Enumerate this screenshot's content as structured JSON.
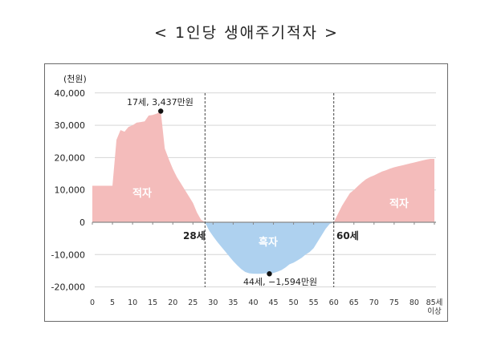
{
  "title": "< 1인당 생애주기적자 >",
  "chart_data": {
    "type": "area",
    "title": "1인당 생애주기적자",
    "xlabel": "",
    "ylabel": "(천원)",
    "ylim": [
      -20000,
      40000
    ],
    "xlim": [
      0,
      85
    ],
    "yticks": [
      40000,
      30000,
      20000,
      10000,
      0,
      -10000,
      -20000
    ],
    "ytick_labels": [
      "40,000",
      "30,000",
      "20,000",
      "10,000",
      "0",
      "-10,000",
      "-20,000"
    ],
    "xticks": [
      0,
      5,
      10,
      15,
      20,
      25,
      30,
      35,
      40,
      45,
      50,
      55,
      60,
      65,
      70,
      75,
      80,
      85
    ],
    "xtick_labels": [
      "0",
      "5",
      "10",
      "15",
      "20",
      "25",
      "30",
      "35",
      "40",
      "45",
      "50",
      "55",
      "60",
      "65",
      "70",
      "75",
      "80",
      "85세 이상"
    ],
    "grid": true,
    "legend": "none",
    "series": [
      {
        "name": "생애주기적자",
        "x": [
          0,
          1,
          2,
          3,
          4,
          5,
          6,
          7,
          8,
          9,
          10,
          11,
          12,
          13,
          14,
          15,
          16,
          17,
          18,
          19,
          20,
          21,
          22,
          23,
          24,
          25,
          26,
          27,
          28,
          29,
          30,
          31,
          32,
          33,
          34,
          35,
          36,
          37,
          38,
          39,
          40,
          41,
          42,
          43,
          44,
          45,
          46,
          47,
          48,
          49,
          50,
          51,
          52,
          53,
          54,
          55,
          56,
          57,
          58,
          59,
          60,
          61,
          62,
          63,
          64,
          65,
          66,
          67,
          68,
          69,
          70,
          71,
          72,
          73,
          74,
          75,
          76,
          77,
          78,
          79,
          80,
          81,
          82,
          83,
          84,
          85
        ],
        "values": [
          11300,
          11300,
          11300,
          11300,
          11300,
          11300,
          25500,
          28500,
          28000,
          29500,
          30000,
          30800,
          31000,
          31200,
          33000,
          33200,
          33600,
          34370,
          22800,
          19500,
          16500,
          14000,
          12000,
          10000,
          8000,
          6000,
          3000,
          800,
          0,
          -2500,
          -4300,
          -6000,
          -7500,
          -9000,
          -10500,
          -12000,
          -13300,
          -14500,
          -15400,
          -15800,
          -15900,
          -15940,
          -15900,
          -15800,
          -15940,
          -15700,
          -15300,
          -14800,
          -14000,
          -13000,
          -12500,
          -11800,
          -11000,
          -10000,
          -9200,
          -8000,
          -6000,
          -4000,
          -2000,
          -500,
          0,
          2500,
          5000,
          7000,
          9000,
          10000,
          11200,
          12300,
          13300,
          14000,
          14500,
          15100,
          15700,
          16100,
          16600,
          17000,
          17300,
          17600,
          17900,
          18200,
          18500,
          18800,
          19100,
          19400,
          19600,
          19600
        ]
      }
    ],
    "regions": [
      {
        "label": "적자",
        "x_range": [
          0,
          28
        ],
        "color": "#f4bcbb"
      },
      {
        "label": "흑자",
        "x_range": [
          28,
          60
        ],
        "color": "#aed1ef"
      },
      {
        "label": "적자",
        "x_range": [
          60,
          85
        ],
        "color": "#f4bcbb"
      }
    ],
    "annotations": [
      {
        "text": "17세, 3,437만원",
        "x": 17,
        "y": 34370,
        "marker": "dot"
      },
      {
        "text": "44세, −1,594만원",
        "x": 44,
        "y": -15940,
        "marker": "dot"
      },
      {
        "text": "28세",
        "x": 28,
        "type": "vline-dashed"
      },
      {
        "text": "60세",
        "x": 60,
        "type": "vline-dashed"
      }
    ]
  },
  "labels": {
    "unit": "(천원)",
    "peak": "17세, 3,437만원",
    "trough": "44세, −1,594만원",
    "cut1": "28세",
    "cut2": "60세",
    "region_deficit_1": "적자",
    "region_surplus": "흑자",
    "region_deficit_2": "적자",
    "xlast_line1": "85세",
    "xlast_line2": "이상"
  },
  "colors": {
    "deficit": "#f4bcbb",
    "surplus": "#aed1ef",
    "grid": "#d6d6d6",
    "axis": "#888888",
    "frame": "#6b6b6b"
  }
}
